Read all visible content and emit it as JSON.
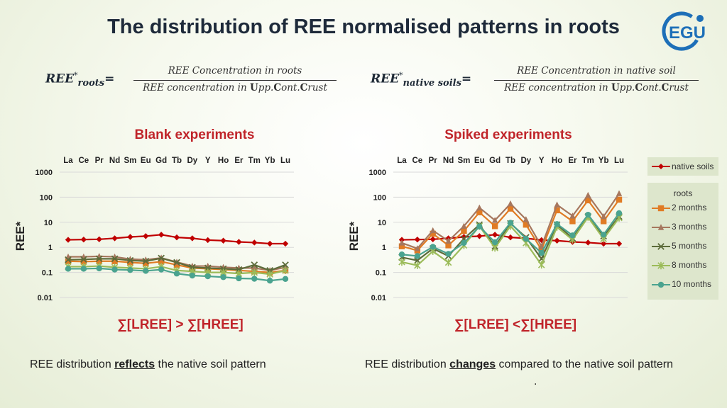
{
  "title": "The distribution of REE normalised patterns in roots",
  "logo_text": "EGU",
  "formula_left": {
    "lhs_main": "REE",
    "lhs_sup": "*",
    "lhs_sub": "roots",
    "equals": "=",
    "numerator": "REE Concentration in roots",
    "den_pre": "REE concentration in ",
    "den_U": "U",
    "den_pp": "pp.",
    "den_C": "C",
    "den_ont": "ont.",
    "den_C2": "C",
    "den_rust": "rust"
  },
  "formula_right": {
    "lhs_main": "REE",
    "lhs_sup": "*",
    "lhs_sub": "native soils",
    "equals": "=",
    "numerator": "REE Concentration in native soil",
    "den_pre": "REE concentration in ",
    "den_U": "U",
    "den_pp": "pp.",
    "den_C": "C",
    "den_ont": "ont.",
    "den_C2": "C",
    "den_rust": "rust"
  },
  "colors": {
    "native_soils": "#c00000",
    "two_months": "#e07b24",
    "three_months": "#a6775e",
    "five_months": "#5c6b3a",
    "eight_months": "#9bbb59",
    "ten_months": "#4aa38f",
    "grid": "#d9d9d9",
    "accent_red": "#c0242a"
  },
  "left_panel": {
    "subtitle": "Blank experiments",
    "sum_text": "∑[LREE] > ∑[HREE]",
    "bottom_pre": "REE distribution ",
    "bottom_key": "reflects",
    "bottom_post": " the native soil pattern"
  },
  "right_panel": {
    "subtitle": "Spiked experiments",
    "sum_text": "∑[LREE] <∑[HREE]",
    "bottom_pre": "REE distribution ",
    "bottom_key": "changes",
    "bottom_post": " compared to the native soil pattern",
    "trailing": "."
  },
  "legend": {
    "native": "native soils",
    "roots_header": "roots",
    "items": [
      "2 months",
      "3 months",
      "5 months",
      "8 months",
      "10 months"
    ]
  },
  "chart_data": [
    {
      "type": "line",
      "title": "Blank experiments",
      "ylabel": "REE*",
      "yscale": "log",
      "ylim": [
        0.01,
        1000
      ],
      "yticks": [
        "1000",
        "100",
        "10",
        "1",
        "0.1",
        "0.01"
      ],
      "categories": [
        "La",
        "Ce",
        "Pr",
        "Nd",
        "Sm",
        "Eu",
        "Gd",
        "Tb",
        "Dy",
        "Y",
        "Ho",
        "Er",
        "Tm",
        "Yb",
        "Lu"
      ],
      "series": [
        {
          "name": "native soils",
          "values": [
            2.0,
            2.05,
            2.1,
            2.3,
            2.6,
            2.8,
            3.2,
            2.5,
            2.3,
            1.95,
            1.85,
            1.65,
            1.55,
            1.4,
            1.4
          ]
        },
        {
          "name": "2 months",
          "values": [
            0.28,
            0.27,
            0.28,
            0.28,
            0.25,
            0.23,
            0.27,
            0.2,
            0.15,
            0.14,
            0.13,
            0.12,
            0.11,
            0.1,
            0.12
          ]
        },
        {
          "name": "3 months",
          "values": [
            0.42,
            0.42,
            0.44,
            0.42,
            0.34,
            0.32,
            0.38,
            0.26,
            0.18,
            0.18,
            0.16,
            0.15,
            0.15,
            0.12,
            0.16
          ]
        },
        {
          "name": "5 months",
          "values": [
            0.32,
            0.33,
            0.35,
            0.35,
            0.3,
            0.28,
            0.37,
            0.25,
            0.16,
            0.15,
            0.14,
            0.13,
            0.2,
            0.12,
            0.2
          ]
        },
        {
          "name": "8 months",
          "values": [
            0.17,
            0.17,
            0.18,
            0.16,
            0.15,
            0.14,
            0.17,
            0.12,
            0.11,
            0.1,
            0.1,
            0.09,
            0.1,
            0.085,
            0.12
          ]
        },
        {
          "name": "10 months",
          "values": [
            0.14,
            0.14,
            0.145,
            0.13,
            0.125,
            0.115,
            0.13,
            0.09,
            0.075,
            0.07,
            0.065,
            0.058,
            0.056,
            0.047,
            0.055
          ]
        }
      ]
    },
    {
      "type": "line",
      "title": "Spiked experiments",
      "ylabel": "REE*",
      "yscale": "log",
      "ylim": [
        0.01,
        1000
      ],
      "yticks": [
        "1000",
        "100",
        "10",
        "1",
        "0.1",
        "0.01"
      ],
      "categories": [
        "La",
        "Ce",
        "Pr",
        "Nd",
        "Sm",
        "Eu",
        "Gd",
        "Tb",
        "Dy",
        "Y",
        "Ho",
        "Er",
        "Tm",
        "Yb",
        "Lu"
      ],
      "series": [
        {
          "name": "native soils",
          "values": [
            2.0,
            2.05,
            2.1,
            2.3,
            2.6,
            2.8,
            3.2,
            2.5,
            2.3,
            1.95,
            1.85,
            1.65,
            1.55,
            1.4,
            1.4
          ]
        },
        {
          "name": "2 months",
          "values": [
            1.1,
            0.75,
            3.5,
            1.2,
            4.5,
            25,
            7,
            35,
            8,
            0.8,
            30,
            11,
            75,
            11,
            80
          ]
        },
        {
          "name": "3 months",
          "values": [
            1.5,
            0.9,
            4.7,
            1.8,
            7,
            38,
            12,
            55,
            13,
            1.1,
            50,
            18,
            120,
            17,
            140
          ]
        },
        {
          "name": "5 months",
          "values": [
            0.4,
            0.3,
            0.9,
            0.45,
            2.2,
            8,
            1.1,
            9,
            2.5,
            0.35,
            8,
            2.3,
            17,
            2.8,
            17
          ]
        },
        {
          "name": "8 months",
          "values": [
            0.26,
            0.19,
            0.7,
            0.25,
            1.2,
            7,
            0.95,
            7,
            1.5,
            0.2,
            6.5,
            2,
            16,
            2.2,
            15
          ]
        },
        {
          "name": "10 months",
          "values": [
            0.52,
            0.45,
            1.05,
            0.55,
            1.5,
            6.8,
            1.6,
            9.5,
            2.2,
            0.6,
            8.5,
            3,
            20,
            3.2,
            23
          ]
        }
      ]
    }
  ]
}
